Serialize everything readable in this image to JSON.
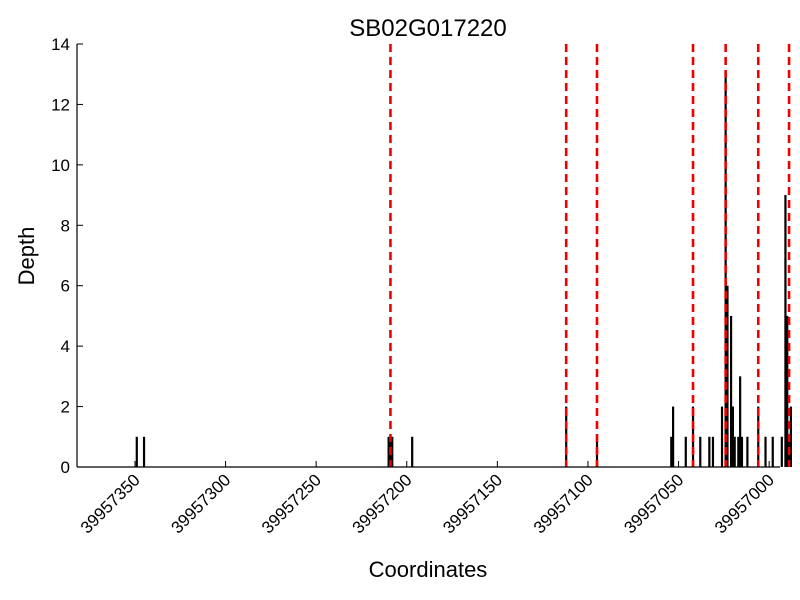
{
  "chart_data": {
    "type": "bar",
    "title": "SB02G017220",
    "xlabel": "Coordinates",
    "ylabel": "Depth",
    "x_inverted": true,
    "xlim": [
      39957382,
      39956994
    ],
    "ylim": [
      0,
      14
    ],
    "x_ticks": [
      39957350,
      39957300,
      39957250,
      39957200,
      39957150,
      39957100,
      39957050,
      39957000
    ],
    "y_ticks": [
      0,
      2,
      4,
      6,
      8,
      10,
      12,
      14
    ],
    "bar_color": "#000000",
    "marker_color": "#ee0000",
    "vertical_markers": [
      39957209,
      39957112,
      39957095,
      39957042,
      39957024,
      39957006,
      39956989
    ],
    "bars": [
      {
        "x": 39957349,
        "depth": 1
      },
      {
        "x": 39957345,
        "depth": 1
      },
      {
        "x": 39957210,
        "depth": 1
      },
      {
        "x": 39957209,
        "depth": 1
      },
      {
        "x": 39957208,
        "depth": 1
      },
      {
        "x": 39957197,
        "depth": 1
      },
      {
        "x": 39957112,
        "depth": 2
      },
      {
        "x": 39957095,
        "depth": 1
      },
      {
        "x": 39957054,
        "depth": 1
      },
      {
        "x": 39957053,
        "depth": 2
      },
      {
        "x": 39957046,
        "depth": 1
      },
      {
        "x": 39957042,
        "depth": 2
      },
      {
        "x": 39957038,
        "depth": 1
      },
      {
        "x": 39957033,
        "depth": 1
      },
      {
        "x": 39957031,
        "depth": 1
      },
      {
        "x": 39957026,
        "depth": 2
      },
      {
        "x": 39957024,
        "depth": 13
      },
      {
        "x": 39957023,
        "depth": 6
      },
      {
        "x": 39957021,
        "depth": 5
      },
      {
        "x": 39957020,
        "depth": 2
      },
      {
        "x": 39957019,
        "depth": 1
      },
      {
        "x": 39957017,
        "depth": 1
      },
      {
        "x": 39957016,
        "depth": 3
      },
      {
        "x": 39957015,
        "depth": 1
      },
      {
        "x": 39957012,
        "depth": 1
      },
      {
        "x": 39957006,
        "depth": 2
      },
      {
        "x": 39957002,
        "depth": 1
      },
      {
        "x": 39956998,
        "depth": 1
      },
      {
        "x": 39956993,
        "depth": 1
      },
      {
        "x": 39956991,
        "depth": 9
      },
      {
        "x": 39956990,
        "depth": 5
      },
      {
        "x": 39956989,
        "depth": 1
      },
      {
        "x": 39956988,
        "depth": 2
      }
    ]
  }
}
